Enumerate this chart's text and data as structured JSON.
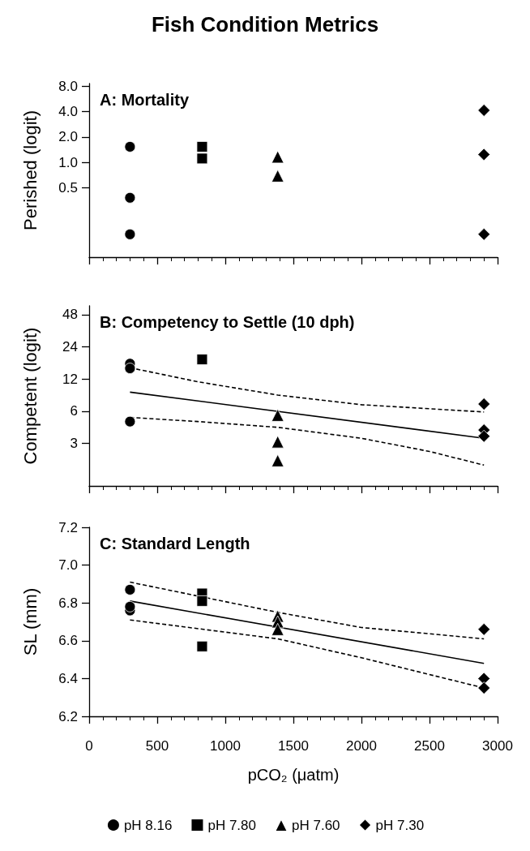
{
  "chart_data": [
    {
      "type": "scatter",
      "title": "Fish Condition Metrics",
      "subtitle": "A: Mortality",
      "ylabel": "Perished (logit)",
      "log": "y",
      "xlim": [
        0,
        3000
      ],
      "xticks": [
        0,
        500,
        1000,
        1500,
        2000,
        2500,
        3000
      ],
      "ylim": [
        0.075,
        8.6
      ],
      "yticks": [
        0.5,
        {
          "value": 1,
          "label": "1.0"
        },
        {
          "value": 2,
          "label": "2.0"
        },
        {
          "value": 4,
          "label": "4.0"
        },
        {
          "value": 8,
          "label": "8.0"
        }
      ],
      "tick_labels": "y",
      "grid": false,
      "legend": false,
      "series": [
        {
          "marker": "circle",
          "color": "#000000",
          "x": [
            300,
            300,
            300
          ],
          "values": [
            1.53,
            0.38,
            0.14
          ]
        },
        {
          "marker": "square",
          "color": "#000000",
          "x": [
            830,
            830
          ],
          "values": [
            1.53,
            1.11
          ]
        },
        {
          "marker": "triangle",
          "color": "#000000",
          "x": [
            1385,
            1385
          ],
          "values": [
            1.16,
            0.69
          ]
        },
        {
          "marker": "diamond",
          "color": "#000000",
          "x": [
            2900,
            2900,
            2900
          ],
          "values": [
            4.14,
            1.24,
            0.14
          ]
        }
      ]
    },
    {
      "type": "scatter",
      "title": "B: Competency to Settle (10 dph)",
      "ylabel": "Competent (logit)",
      "log": "y",
      "xlim": [
        0,
        3000
      ],
      "xticks": [
        0,
        500,
        1000,
        1500,
        2000,
        2500,
        3000
      ],
      "ylim": [
        1.2,
        58
      ],
      "yticks": [
        3,
        6,
        12,
        24,
        48
      ],
      "tick_labels": "y",
      "grid": false,
      "legend": false,
      "series": [
        {
          "marker": "circle",
          "color": "#000000",
          "x": [
            300,
            300,
            300
          ],
          "values": [
            16.7,
            15.1,
            4.8
          ]
        },
        {
          "marker": "square",
          "color": "#000000",
          "x": [
            830
          ],
          "values": [
            18.3
          ]
        },
        {
          "marker": "triangle",
          "color": "#000000",
          "x": [
            1385,
            1385,
            1385
          ],
          "values": [
            5.5,
            3.1,
            2.07
          ]
        },
        {
          "marker": "diamond",
          "color": "#000000",
          "x": [
            2900,
            2900,
            2900
          ],
          "values": [
            7.0,
            4.0,
            3.5
          ]
        },
        {
          "type": "line",
          "marker": "none",
          "line_style": "solid",
          "color": "#000000",
          "x": [
            300,
            2900
          ],
          "values": [
            9.05,
            3.35
          ]
        },
        {
          "type": "line",
          "marker": "none",
          "line_style": "dashed",
          "color": "#000000",
          "x": [
            300,
            800,
            1385,
            2000,
            2900
          ],
          "values": [
            15.3,
            11.3,
            8.5,
            6.9,
            5.9
          ]
        },
        {
          "type": "line",
          "marker": "none",
          "line_style": "dashed",
          "color": "#000000",
          "x": [
            300,
            800,
            1385,
            2000,
            2500,
            2900
          ],
          "values": [
            5.25,
            4.8,
            4.24,
            3.35,
            2.52,
            1.88
          ]
        }
      ]
    },
    {
      "type": "scatter",
      "title": "C: Standard Length",
      "xlabel": "pCO₂ (μatm)",
      "ylabel": "SL (mm)",
      "xlim": [
        0,
        3000
      ],
      "xticks": [
        0,
        500,
        1000,
        1500,
        2000,
        2500,
        3000
      ],
      "ylim": [
        6.2,
        7.2
      ],
      "yticks": [
        6.2,
        6.4,
        6.6,
        6.8,
        {
          "value": 7,
          "label": "7.0"
        },
        7.2
      ],
      "grid": false,
      "legend": "bottom",
      "series": [
        {
          "name": "pH 8.16",
          "marker": "circle",
          "color": "#000000",
          "x": [
            300,
            300,
            300
          ],
          "values": [
            6.87,
            6.76,
            6.78
          ]
        },
        {
          "name": "pH 7.80",
          "marker": "square",
          "color": "#000000",
          "x": [
            830,
            830,
            830
          ],
          "values": [
            6.85,
            6.81,
            6.57
          ]
        },
        {
          "name": "pH 7.60",
          "marker": "triangle",
          "color": "#000000",
          "x": [
            1385,
            1385,
            1385
          ],
          "values": [
            6.73,
            6.7,
            6.66
          ]
        },
        {
          "name": "pH 7.30",
          "marker": "diamond",
          "color": "#000000",
          "x": [
            2900,
            2900,
            2900
          ],
          "values": [
            6.66,
            6.4,
            6.35
          ]
        },
        {
          "type": "line",
          "marker": "none",
          "line_style": "solid",
          "color": "#000000",
          "x": [
            300,
            2900
          ],
          "values": [
            6.81,
            6.48
          ]
        },
        {
          "type": "line",
          "marker": "none",
          "line_style": "dashed",
          "color": "#000000",
          "x": [
            300,
            1385,
            2000,
            2900
          ],
          "values": [
            6.91,
            6.75,
            6.67,
            6.61
          ]
        },
        {
          "type": "line",
          "marker": "none",
          "line_style": "dashed",
          "color": "#000000",
          "x": [
            300,
            1385,
            2000,
            2900
          ],
          "values": [
            6.71,
            6.61,
            6.51,
            6.35
          ]
        }
      ]
    }
  ]
}
